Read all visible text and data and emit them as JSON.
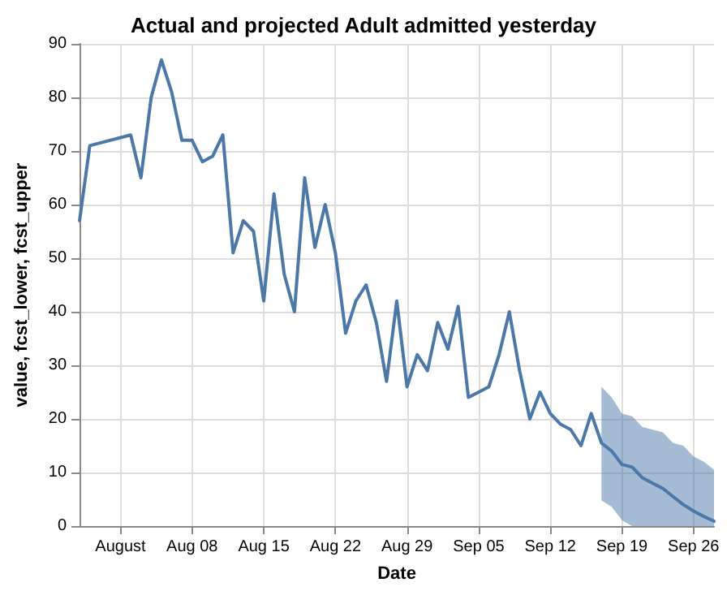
{
  "chart_data": {
    "type": "line",
    "title": "Actual and projected Adult admitted yesterday",
    "xlabel": "Date",
    "ylabel": "value, fcst_lower, fcst_upper",
    "x": [
      "--07-28",
      "--07-29",
      "--08-02",
      "--08-03",
      "--08-04",
      "--08-05",
      "--08-06",
      "--08-07",
      "--08-08",
      "--08-09",
      "--08-10",
      "--08-11",
      "--08-12",
      "--08-13",
      "--08-14",
      "--08-15",
      "--08-16",
      "--08-17",
      "--08-18",
      "--08-19",
      "--08-20",
      "--08-21",
      "--08-22",
      "--08-23",
      "--08-24",
      "--08-25",
      "--08-26",
      "--08-27",
      "--08-28",
      "--08-29",
      "--08-30",
      "--08-31",
      "--09-01",
      "--09-02",
      "--09-03",
      "--09-04",
      "--09-05",
      "--09-06",
      "--09-07",
      "--09-08",
      "--09-09",
      "--09-10",
      "--09-11",
      "--09-12",
      "--09-13",
      "--09-14",
      "--09-15",
      "--09-16",
      "--09-17",
      "--09-18",
      "--09-19",
      "--09-20",
      "--09-21",
      "--09-22",
      "--09-23",
      "--09-24",
      "--09-25",
      "--09-26",
      "--09-27",
      "--09-28"
    ],
    "series": [
      {
        "color": "#4c78a8",
        "values": [
          57,
          71,
          73,
          65,
          80,
          87,
          81,
          72,
          72,
          68,
          69,
          73,
          51,
          57,
          55,
          42,
          62,
          47,
          40,
          65,
          52,
          60,
          51,
          36,
          42,
          45,
          38,
          27,
          42,
          26,
          32,
          29,
          38,
          33,
          41,
          24,
          25,
          26,
          32,
          40,
          29,
          20,
          25,
          21,
          19,
          18,
          15,
          21,
          15.5,
          14,
          11.5,
          11,
          9,
          8,
          7,
          5.5,
          4,
          2.8,
          1.8,
          0.9
        ],
        "lower": [
          null,
          null,
          null,
          null,
          null,
          null,
          null,
          null,
          null,
          null,
          null,
          null,
          null,
          null,
          null,
          null,
          null,
          null,
          null,
          null,
          null,
          null,
          null,
          null,
          null,
          null,
          null,
          null,
          null,
          null,
          null,
          null,
          null,
          null,
          null,
          null,
          null,
          null,
          null,
          null,
          null,
          null,
          null,
          null,
          null,
          null,
          null,
          null,
          4.8,
          3.6,
          1.1,
          0,
          0,
          0,
          0,
          0,
          0,
          0,
          0,
          0
        ],
        "upper": [
          null,
          null,
          null,
          null,
          null,
          null,
          null,
          null,
          null,
          null,
          null,
          null,
          null,
          null,
          null,
          null,
          null,
          null,
          null,
          null,
          null,
          null,
          null,
          null,
          null,
          null,
          null,
          null,
          null,
          null,
          null,
          null,
          null,
          null,
          null,
          null,
          null,
          null,
          null,
          null,
          null,
          null,
          null,
          null,
          null,
          null,
          null,
          null,
          26,
          24,
          21,
          20.5,
          18.5,
          18,
          17.5,
          15.5,
          15,
          13,
          12,
          10.5
        ]
      }
    ],
    "xlim": [
      "--07-28",
      "--09-28"
    ],
    "xticks": [
      {
        "value": "--08-01",
        "label": "August"
      },
      {
        "value": "--08-08",
        "label": "Aug 08"
      },
      {
        "value": "--08-15",
        "label": "Aug 15"
      },
      {
        "value": "--08-22",
        "label": "Aug 22"
      },
      {
        "value": "--08-29",
        "label": "Aug 29"
      },
      {
        "value": "--09-05",
        "label": "Sep 05"
      },
      {
        "value": "--09-12",
        "label": "Sep 12"
      },
      {
        "value": "--09-19",
        "label": "Sep 19"
      },
      {
        "value": "--09-26",
        "label": "Sep 26"
      }
    ],
    "ylim": [
      0,
      90
    ],
    "yticks": [
      0,
      10,
      20,
      30,
      40,
      50,
      60,
      70,
      80,
      90
    ],
    "grid": true,
    "marker": "none",
    "line_style": "solid"
  }
}
